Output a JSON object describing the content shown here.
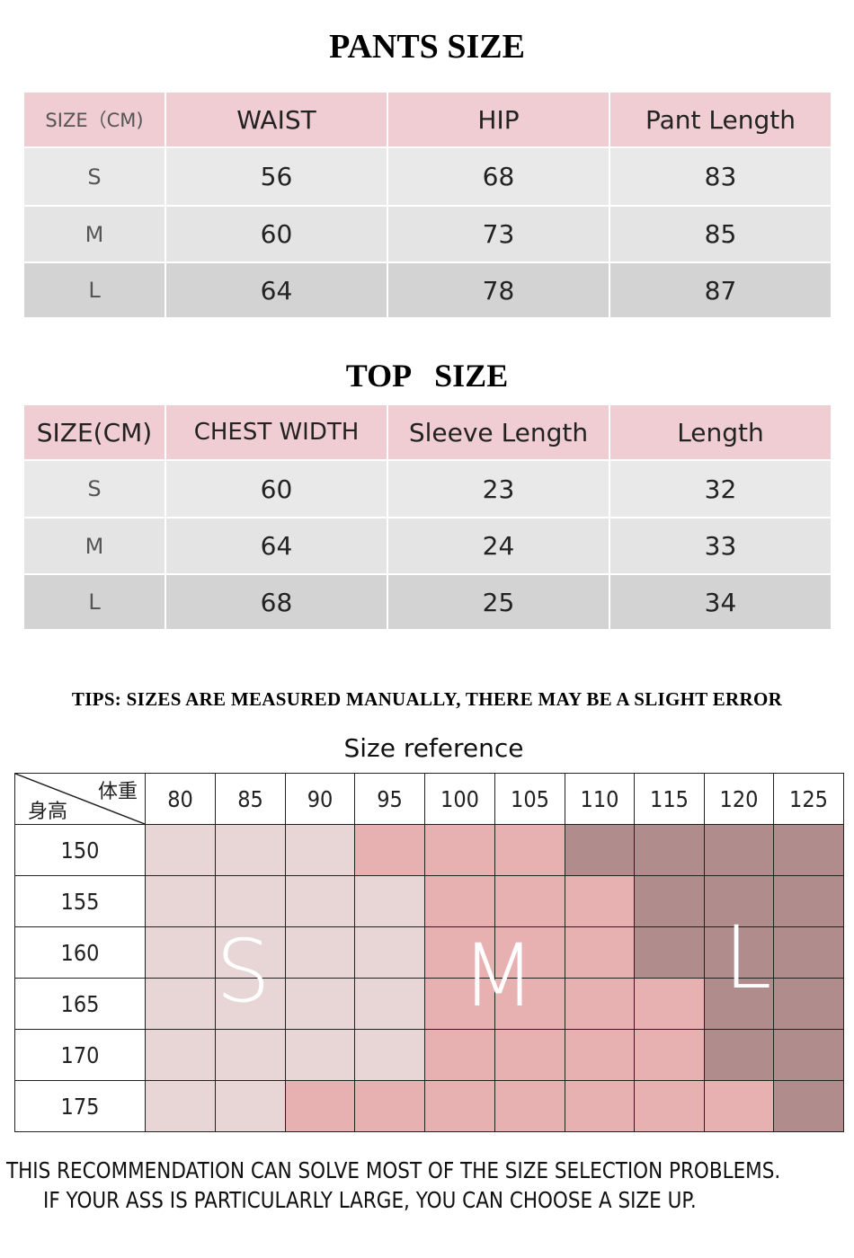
{
  "pants": {
    "title": "PANTS SIZE",
    "headers": [
      "SIZE（CM)",
      "WAIST",
      "HIP",
      "Pant Length"
    ],
    "rows": [
      [
        "S",
        "56",
        "68",
        "83"
      ],
      [
        "M",
        "60",
        "73",
        "85"
      ],
      [
        "L",
        "64",
        "78",
        "87"
      ]
    ]
  },
  "top": {
    "title": "TOP   SIZE",
    "headers": [
      "SIZE(CM)",
      "CHEST WIDTH",
      "Sleeve Length",
      "Length"
    ],
    "rows": [
      [
        "S",
        "60",
        "23",
        "32"
      ],
      [
        "M",
        "64",
        "24",
        "33"
      ],
      [
        "L",
        "68",
        "25",
        "34"
      ]
    ]
  },
  "tips": "TIPS: SIZES ARE MEASURED MANUALLY, THERE MAY BE A SLIGHT ERROR",
  "reference": {
    "title": "Size reference",
    "corner_weight": "体重",
    "corner_height": "身高",
    "weights": [
      "80",
      "85",
      "90",
      "95",
      "100",
      "105",
      "110",
      "115",
      "120",
      "125"
    ],
    "heights": [
      "150",
      "155",
      "160",
      "165",
      "170",
      "175"
    ],
    "grid": [
      [
        "S",
        "S",
        "S",
        "M",
        "M",
        "M",
        "L",
        "L",
        "L",
        "L"
      ],
      [
        "S",
        "S",
        "S",
        "S",
        "M",
        "M",
        "M",
        "L",
        "L",
        "L"
      ],
      [
        "S",
        "S",
        "S",
        "S",
        "M",
        "M",
        "M",
        "L",
        "L",
        "L"
      ],
      [
        "S",
        "S",
        "S",
        "S",
        "M",
        "M",
        "M",
        "M",
        "L",
        "L"
      ],
      [
        "S",
        "S",
        "S",
        "S",
        "M",
        "M",
        "M",
        "M",
        "L",
        "L"
      ],
      [
        "S",
        "S",
        "M",
        "M",
        "M",
        "M",
        "M",
        "M",
        "M",
        "L"
      ]
    ],
    "labels": {
      "S": "S",
      "M": "M",
      "L": "L"
    },
    "colors": {
      "S": "#e8d6d7",
      "M": "#e8b1b1",
      "L": "#b08d8c"
    }
  },
  "footer": [
    "THIS RECOMMENDATION CAN SOLVE MOST OF THE SIZE SELECTION PROBLEMS.",
    "IF YOUR ASS IS PARTICULARLY LARGE, YOU CAN CHOOSE A SIZE UP."
  ]
}
